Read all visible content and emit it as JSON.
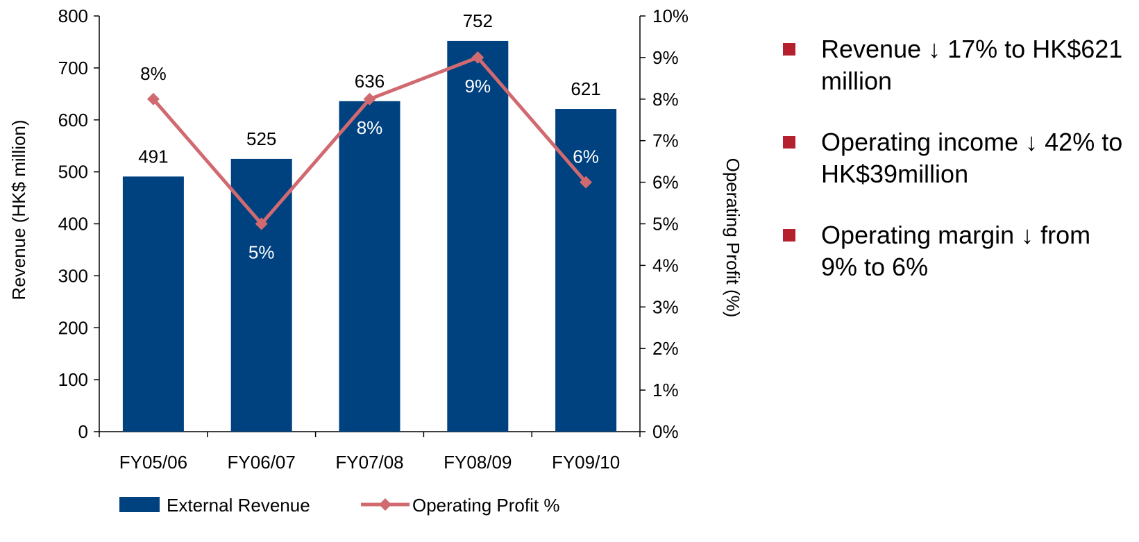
{
  "chart_data": {
    "type": "bar",
    "categories": [
      "FY05/06",
      "FY06/07",
      "FY07/08",
      "FY08/09",
      "FY09/10"
    ],
    "series": [
      {
        "name": "External Revenue",
        "type": "bar",
        "axis": "left",
        "color": "#00427f",
        "values": [
          491,
          525,
          636,
          752,
          621
        ],
        "labels": [
          "491",
          "525",
          "636",
          "752",
          "621"
        ]
      },
      {
        "name": "Operating Profit %",
        "type": "line",
        "axis": "right",
        "color": "#d06a70",
        "values": [
          8,
          5,
          8,
          9,
          6
        ],
        "labels": [
          "8%",
          "5%",
          "8%",
          "9%",
          "6%"
        ]
      }
    ],
    "ylabel": "Revenue (HK$ million)",
    "y2label": "Operating Profit (%)",
    "ylim": [
      0,
      800
    ],
    "y2lim": [
      0,
      10
    ],
    "yticks": [
      "0",
      "100",
      "200",
      "300",
      "400",
      "500",
      "600",
      "700",
      "800"
    ],
    "y2ticks": [
      "0%",
      "1%",
      "2%",
      "3%",
      "4%",
      "5%",
      "6%",
      "7%",
      "8%",
      "9%",
      "10%"
    ],
    "grid": false,
    "legend": "bottom"
  },
  "bullets": [
    {
      "text": "Revenue ↓ 17% to HK$621 million"
    },
    {
      "text": "Operating income ↓ 42% to HK$39million"
    },
    {
      "text": "Operating margin ↓ from 9% to 6%"
    }
  ],
  "colors": {
    "bar": "#00427f",
    "line": "#d06a70",
    "bullet": "#b5202e"
  }
}
